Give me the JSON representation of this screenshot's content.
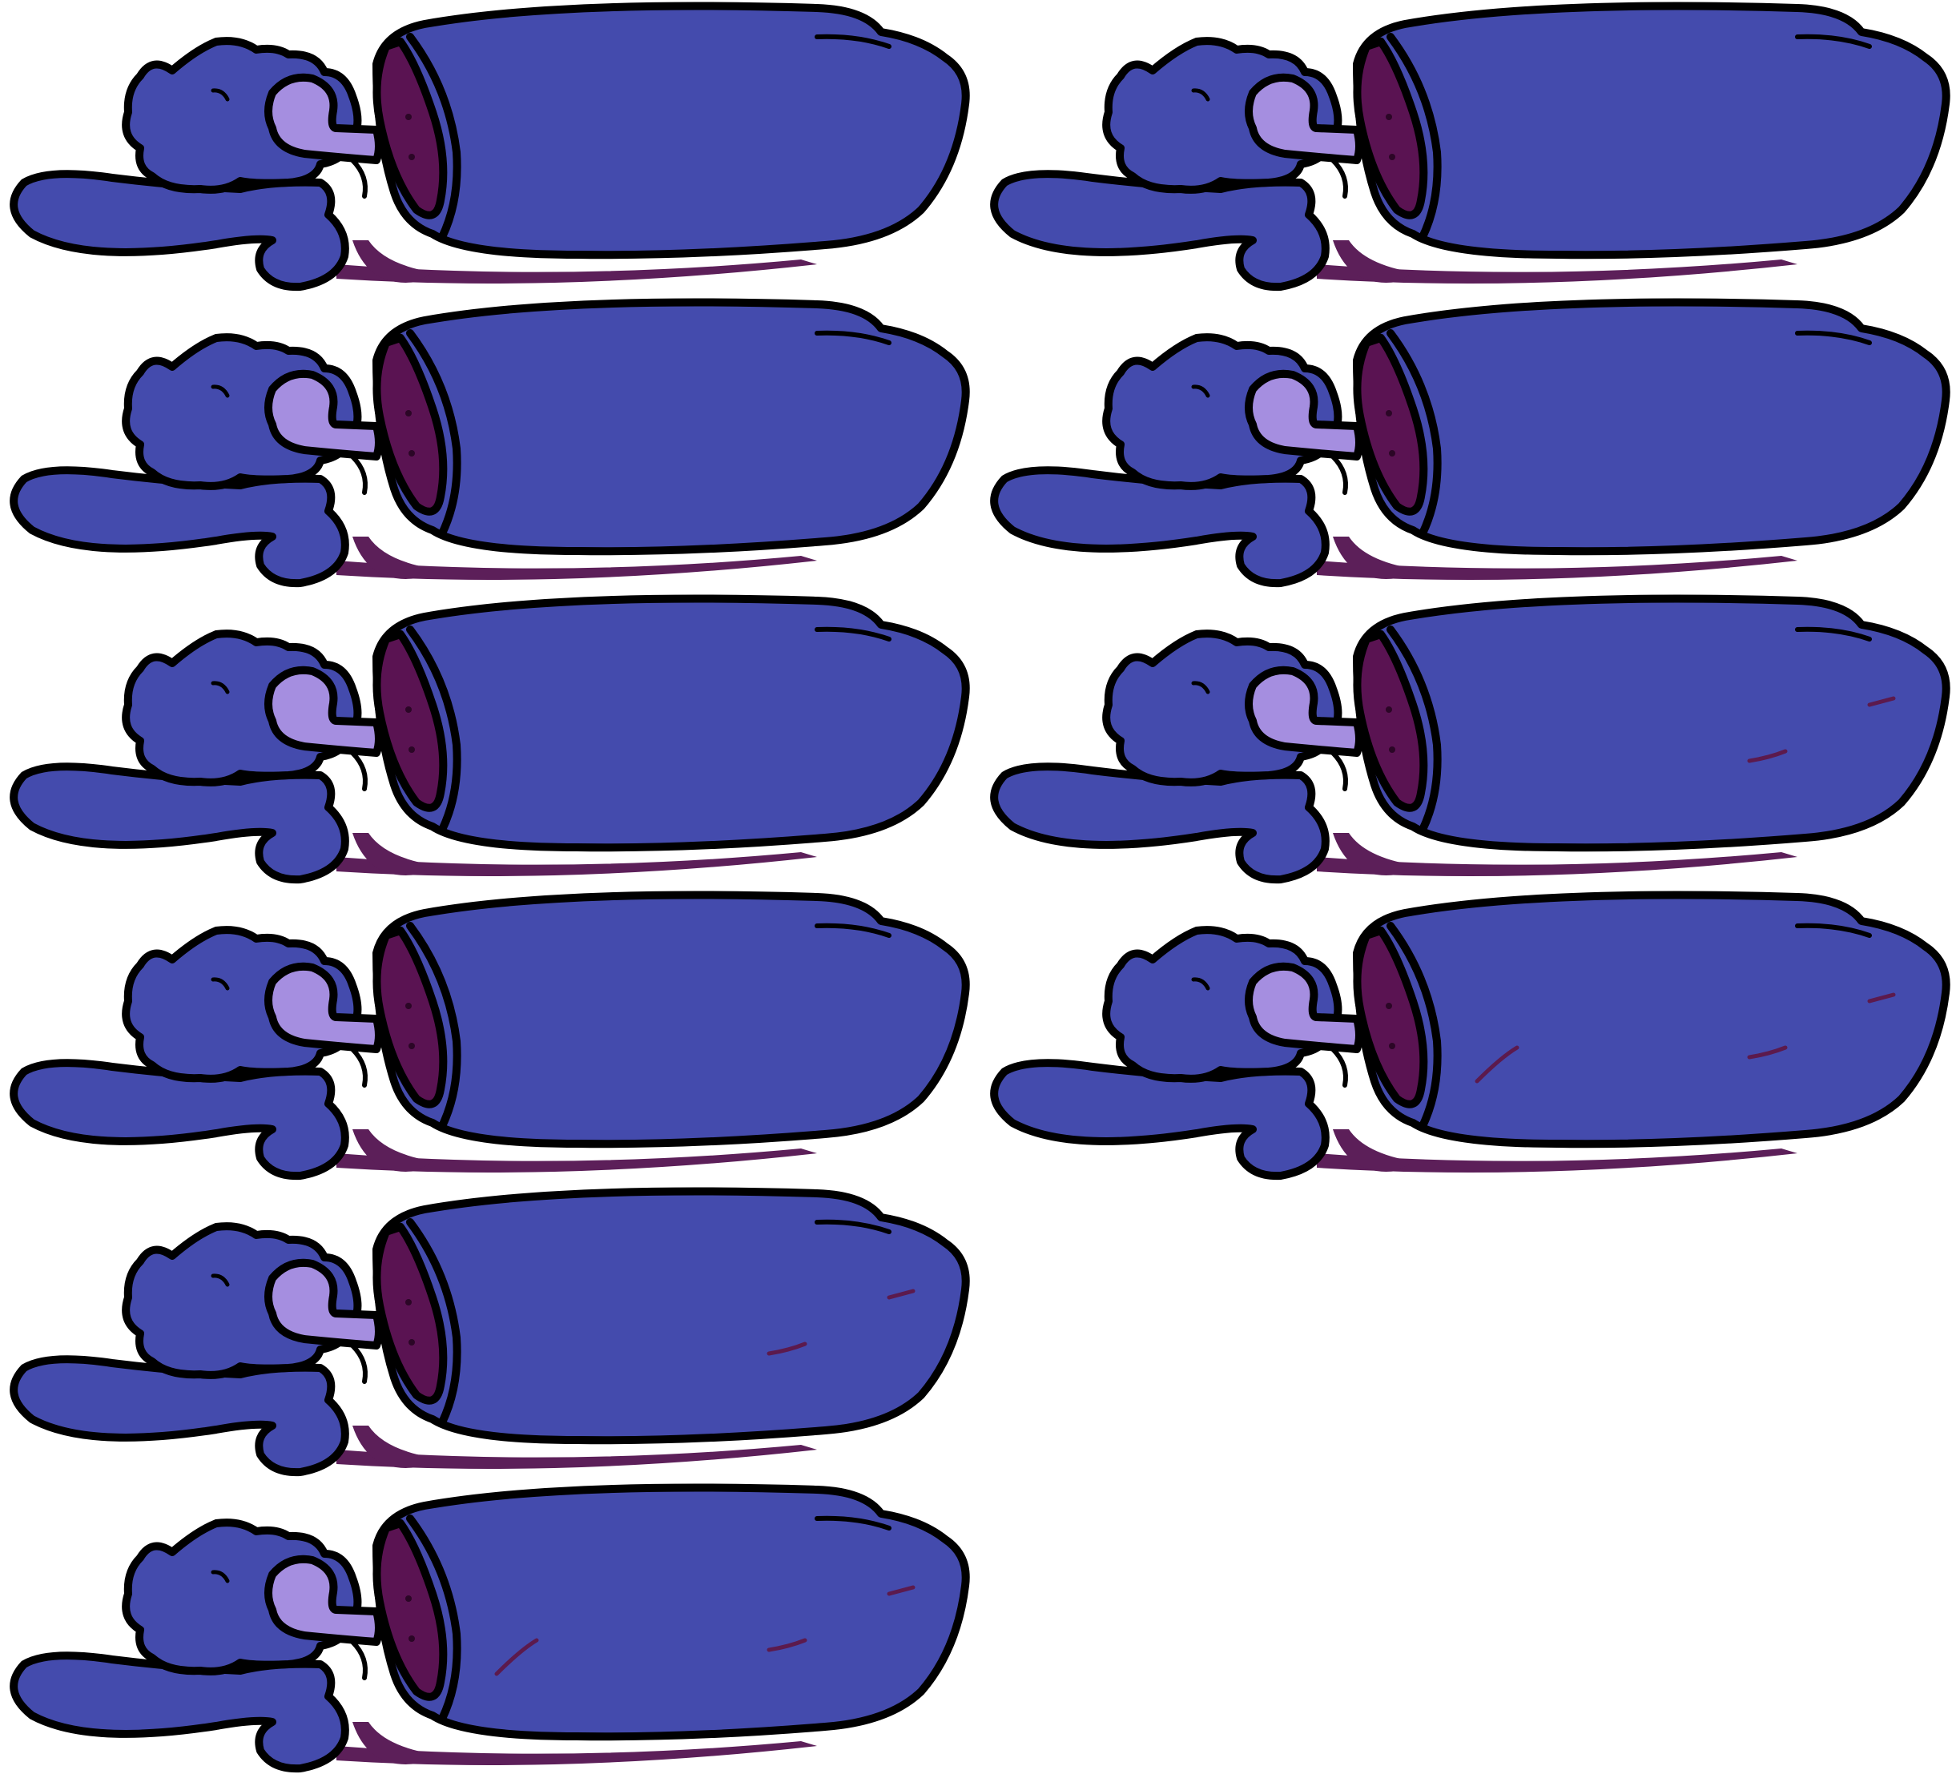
{
  "sheet": {
    "subject": "log-creature-sprite",
    "colors": {
      "background": "#ffffff",
      "body": "#444bad",
      "log_end_dark": "#5a1352",
      "eye_highlight": "#a58ee0",
      "shadow": "#5c1f59",
      "outline": "#000000",
      "scratch": "#5c1a4d"
    },
    "frames": [
      {
        "index": 1,
        "column": 1,
        "row": 1,
        "damage_marks": 0
      },
      {
        "index": 2,
        "column": 2,
        "row": 1,
        "damage_marks": 0
      },
      {
        "index": 3,
        "column": 1,
        "row": 2,
        "damage_marks": 0
      },
      {
        "index": 4,
        "column": 2,
        "row": 2,
        "damage_marks": 0
      },
      {
        "index": 5,
        "column": 1,
        "row": 3,
        "damage_marks": 0
      },
      {
        "index": 6,
        "column": 2,
        "row": 3,
        "damage_marks": 2
      },
      {
        "index": 7,
        "column": 1,
        "row": 4,
        "damage_marks": 0
      },
      {
        "index": 8,
        "column": 2,
        "row": 4,
        "damage_marks": 3
      },
      {
        "index": 9,
        "column": 1,
        "row": 5,
        "damage_marks": 2
      },
      {
        "index": 10,
        "column": 1,
        "row": 6,
        "damage_marks": 3
      }
    ]
  }
}
